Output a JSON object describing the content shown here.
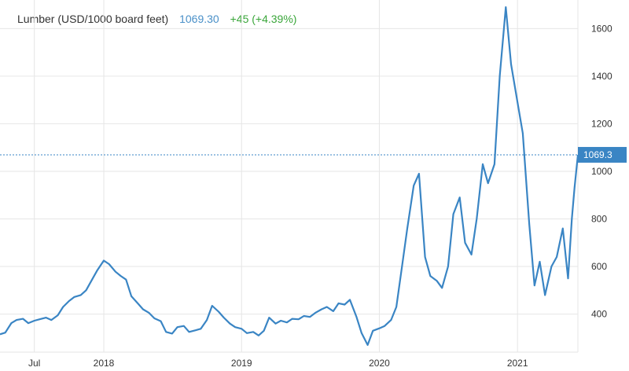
{
  "header": {
    "title": "Lumber (USD/1000 board feet)",
    "price": "1069.30",
    "change": "+45 (+4.39%)"
  },
  "colors": {
    "line": "#3a85c4",
    "grid": "#e6e6e6",
    "last_line": "#3a85c4",
    "last_box": "#3a85c4",
    "change": "#3aa63a",
    "price": "#4a90c8"
  },
  "chart_data": {
    "type": "line",
    "title": "Lumber (USD/1000 board feet)",
    "xlabel": "",
    "ylabel": "",
    "grid": true,
    "y_axis_side": "right",
    "ylim": [
      240,
      1720
    ],
    "xlim": [
      "2017-04-01",
      "2021-06-10"
    ],
    "y_ticks": [
      400,
      600,
      800,
      1000,
      1200,
      1400,
      1600
    ],
    "x_ticks": [
      {
        "date": "2017-07-01",
        "label": "Jul"
      },
      {
        "date": "2018-01-01",
        "label": "2018"
      },
      {
        "date": "2019-01-01",
        "label": "2019"
      },
      {
        "date": "2020-01-01",
        "label": "2020"
      },
      {
        "date": "2021-01-01",
        "label": "2021"
      }
    ],
    "last_value": 1069.3,
    "last_value_label": "1069.3",
    "series": [
      {
        "name": "Lumber",
        "points": [
          [
            "2017-04-01",
            315
          ],
          [
            "2017-04-15",
            322
          ],
          [
            "2017-05-01",
            362
          ],
          [
            "2017-05-15",
            375
          ],
          [
            "2017-06-01",
            380
          ],
          [
            "2017-06-15",
            362
          ],
          [
            "2017-07-01",
            372
          ],
          [
            "2017-07-15",
            378
          ],
          [
            "2017-08-01",
            385
          ],
          [
            "2017-08-15",
            375
          ],
          [
            "2017-09-01",
            395
          ],
          [
            "2017-09-15",
            430
          ],
          [
            "2017-10-01",
            455
          ],
          [
            "2017-10-15",
            472
          ],
          [
            "2017-11-01",
            480
          ],
          [
            "2017-11-15",
            500
          ],
          [
            "2017-12-01",
            545
          ],
          [
            "2017-12-15",
            585
          ],
          [
            "2018-01-01",
            625
          ],
          [
            "2018-01-15",
            610
          ],
          [
            "2018-02-01",
            578
          ],
          [
            "2018-02-15",
            560
          ],
          [
            "2018-03-01",
            545
          ],
          [
            "2018-03-15",
            475
          ],
          [
            "2018-04-01",
            445
          ],
          [
            "2018-04-15",
            420
          ],
          [
            "2018-05-01",
            405
          ],
          [
            "2018-05-15",
            382
          ],
          [
            "2018-06-01",
            370
          ],
          [
            "2018-06-15",
            325
          ],
          [
            "2018-07-01",
            318
          ],
          [
            "2018-07-15",
            345
          ],
          [
            "2018-08-01",
            350
          ],
          [
            "2018-08-15",
            325
          ],
          [
            "2018-09-01",
            332
          ],
          [
            "2018-09-15",
            338
          ],
          [
            "2018-10-01",
            375
          ],
          [
            "2018-10-15",
            435
          ],
          [
            "2018-11-01",
            410
          ],
          [
            "2018-11-15",
            385
          ],
          [
            "2018-12-01",
            360
          ],
          [
            "2018-12-15",
            345
          ],
          [
            "2019-01-01",
            338
          ],
          [
            "2019-01-15",
            320
          ],
          [
            "2019-02-01",
            325
          ],
          [
            "2019-02-15",
            310
          ],
          [
            "2019-03-01",
            330
          ],
          [
            "2019-03-15",
            385
          ],
          [
            "2019-04-01",
            360
          ],
          [
            "2019-04-15",
            372
          ],
          [
            "2019-05-01",
            365
          ],
          [
            "2019-05-15",
            380
          ],
          [
            "2019-06-01",
            378
          ],
          [
            "2019-06-15",
            392
          ],
          [
            "2019-07-01",
            388
          ],
          [
            "2019-07-15",
            405
          ],
          [
            "2019-08-01",
            420
          ],
          [
            "2019-08-15",
            430
          ],
          [
            "2019-09-01",
            412
          ],
          [
            "2019-09-15",
            445
          ],
          [
            "2019-10-01",
            440
          ],
          [
            "2019-10-15",
            460
          ],
          [
            "2019-11-01",
            390
          ],
          [
            "2019-11-15",
            320
          ],
          [
            "2019-12-01",
            270
          ],
          [
            "2019-12-15",
            330
          ],
          [
            "2020-01-01",
            340
          ],
          [
            "2020-01-15",
            350
          ],
          [
            "2020-02-01",
            375
          ],
          [
            "2020-02-15",
            430
          ],
          [
            "2020-03-01",
            600
          ],
          [
            "2020-03-15",
            760
          ],
          [
            "2020-04-01",
            940
          ],
          [
            "2020-04-15",
            990
          ],
          [
            "2020-05-01",
            640
          ],
          [
            "2020-05-15",
            560
          ],
          [
            "2020-06-01",
            540
          ],
          [
            "2020-06-15",
            510
          ],
          [
            "2020-07-01",
            600
          ],
          [
            "2020-07-15",
            820
          ],
          [
            "2020-08-01",
            890
          ],
          [
            "2020-08-15",
            700
          ],
          [
            "2020-09-01",
            650
          ],
          [
            "2020-09-15",
            800
          ],
          [
            "2020-10-01",
            1030
          ],
          [
            "2020-10-15",
            950
          ],
          [
            "2020-11-01",
            1030
          ],
          [
            "2020-11-15",
            1400
          ],
          [
            "2020-12-01",
            1690
          ],
          [
            "2020-12-15",
            1450
          ],
          [
            "2021-01-01",
            1290
          ],
          [
            "2021-01-15",
            1160
          ],
          [
            "2021-02-01",
            780
          ],
          [
            "2021-02-15",
            520
          ],
          [
            "2021-03-01",
            620
          ],
          [
            "2021-03-15",
            480
          ],
          [
            "2021-04-01",
            600
          ],
          [
            "2021-04-15",
            640
          ],
          [
            "2021-05-01",
            760
          ],
          [
            "2021-05-15",
            550
          ],
          [
            "2021-05-25",
            800
          ],
          [
            "2021-06-01",
            930
          ],
          [
            "2021-06-10",
            1069
          ]
        ]
      }
    ]
  }
}
